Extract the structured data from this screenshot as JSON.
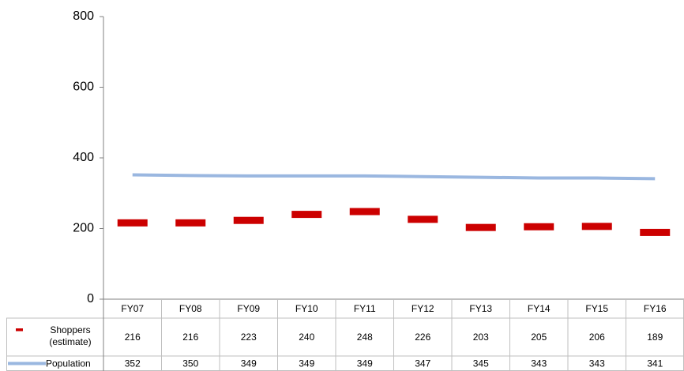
{
  "chart_data": {
    "type": "line",
    "categories": [
      "FY07",
      "FY08",
      "FY09",
      "FY10",
      "FY11",
      "FY12",
      "FY13",
      "FY14",
      "FY15",
      "FY16"
    ],
    "series": [
      {
        "name": "Shoppers (estimate)",
        "color": "#cc0000",
        "style": "marker",
        "values": [
          216,
          216,
          223,
          240,
          248,
          226,
          203,
          205,
          206,
          189
        ]
      },
      {
        "name": "Population",
        "color": "#9ab7e0",
        "style": "line",
        "values": [
          352,
          350,
          349,
          349,
          349,
          347,
          345,
          343,
          343,
          341
        ]
      }
    ],
    "ylim": [
      0,
      800
    ],
    "yticks": [
      0,
      200,
      400,
      600,
      800
    ],
    "grid": false,
    "data_table": true
  }
}
